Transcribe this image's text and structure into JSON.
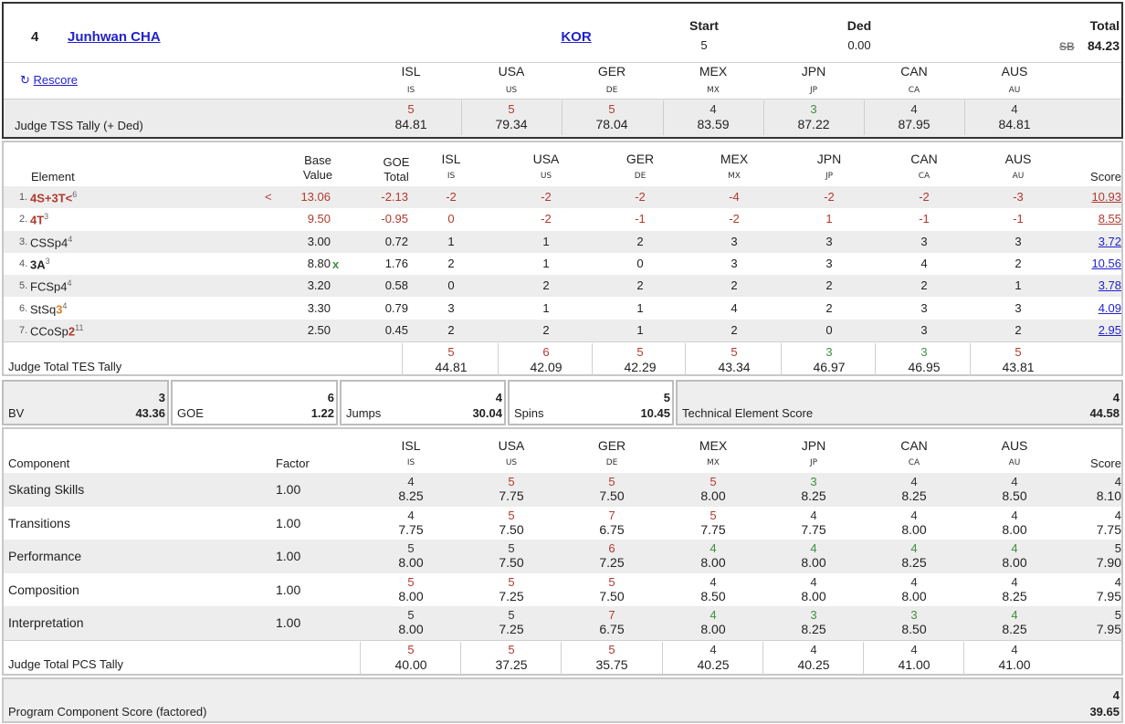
{
  "header": {
    "rank": "4",
    "skater_name": "Junhwan CHA",
    "nation": "KOR",
    "start_label": "Start",
    "start_value": "5",
    "ded_label": "Ded",
    "ded_value": "0.00",
    "total_label": "Total",
    "badge": "SB",
    "total_value": "84.23",
    "rescore_label": "Rescore",
    "tss_label": "Judge TSS Tally (+ Ded)"
  },
  "judges": [
    {
      "name": "ISL",
      "code": "IS"
    },
    {
      "name": "USA",
      "code": "US"
    },
    {
      "name": "GER",
      "code": "DE"
    },
    {
      "name": "MEX",
      "code": "MX"
    },
    {
      "name": "JPN",
      "code": "JP"
    },
    {
      "name": "CAN",
      "code": "CA"
    },
    {
      "name": "AUS",
      "code": "AU"
    }
  ],
  "tss_tally": [
    {
      "rank": "5",
      "value": "84.81",
      "color": "red"
    },
    {
      "rank": "5",
      "value": "79.34",
      "color": "red"
    },
    {
      "rank": "5",
      "value": "78.04",
      "color": "red"
    },
    {
      "rank": "4",
      "value": "83.59",
      "color": "dark"
    },
    {
      "rank": "3",
      "value": "87.22",
      "color": "green"
    },
    {
      "rank": "4",
      "value": "87.95",
      "color": "dark"
    },
    {
      "rank": "4",
      "value": "84.81",
      "color": "dark"
    }
  ],
  "elements_table": {
    "col_element": "Element",
    "col_base_line1": "Base",
    "col_base_line2": "Value",
    "col_goe_line1": "GOE",
    "col_goe_line2": "Total",
    "col_score": "Score",
    "rows": [
      {
        "num": "1.",
        "name": "4S+3T<",
        "name_sup": "6",
        "name_color": "red",
        "flag": "<",
        "base": "13.06",
        "base_red": true,
        "bonus": "",
        "goe": "-2.13",
        "goe_red": true,
        "scores": [
          "-2",
          "-2",
          "-2",
          "-4",
          "-2",
          "-2",
          "-3"
        ],
        "scores_red": true,
        "score": "10.93",
        "score_red": true
      },
      {
        "num": "2.",
        "name": "4T",
        "name_sup": "3",
        "name_color": "red",
        "flag": "",
        "base": "9.50",
        "base_red": true,
        "bonus": "",
        "goe": "-0.95",
        "goe_red": true,
        "scores": [
          "0",
          "-2",
          "-1",
          "-2",
          "1",
          "-1",
          "-1"
        ],
        "scores_red": true,
        "score": "8.55",
        "score_red": true
      },
      {
        "num": "3.",
        "name": "CSSp4",
        "name_sup": "4",
        "name_color": "plain",
        "flag": "",
        "base": "3.00",
        "base_red": false,
        "bonus": "",
        "goe": "0.72",
        "goe_red": false,
        "scores": [
          "1",
          "1",
          "2",
          "3",
          "3",
          "3",
          "3"
        ],
        "scores_red": false,
        "score": "3.72",
        "score_red": false
      },
      {
        "num": "4.",
        "name": "3A",
        "name_sup": "3",
        "name_color": "bold",
        "flag": "",
        "base": "8.80",
        "base_red": false,
        "bonus": "x",
        "goe": "1.76",
        "goe_red": false,
        "scores": [
          "2",
          "1",
          "0",
          "3",
          "3",
          "4",
          "2"
        ],
        "scores_red": false,
        "score": "10.56",
        "score_red": false
      },
      {
        "num": "5.",
        "name": "FCSp4",
        "name_sup": "4",
        "name_color": "plain",
        "flag": "",
        "base": "3.20",
        "base_red": false,
        "bonus": "",
        "goe": "0.58",
        "goe_red": false,
        "scores": [
          "0",
          "2",
          "2",
          "2",
          "2",
          "2",
          "1"
        ],
        "scores_red": false,
        "score": "3.78",
        "score_red": false
      },
      {
        "num": "6.",
        "name": "StSq",
        "name_level": "3",
        "name_sup": "4",
        "name_color": "plain",
        "flag": "",
        "base": "3.30",
        "base_red": false,
        "bonus": "",
        "goe": "0.79",
        "goe_red": false,
        "scores": [
          "3",
          "1",
          "1",
          "4",
          "2",
          "3",
          "3"
        ],
        "scores_red": false,
        "score": "4.09",
        "score_red": false
      },
      {
        "num": "7.",
        "name": "CCoSp",
        "name_level": "2",
        "name_level_red": true,
        "name_sup": "11",
        "name_color": "plain",
        "flag": "",
        "base": "2.50",
        "base_red": false,
        "bonus": "",
        "goe": "0.45",
        "goe_red": false,
        "scores": [
          "2",
          "2",
          "1",
          "2",
          "0",
          "3",
          "2"
        ],
        "scores_red": false,
        "score": "2.95",
        "score_red": false
      }
    ],
    "tes_label": "Judge Total TES Tally",
    "tes_tally": [
      {
        "rank": "5",
        "value": "44.81",
        "color": "red"
      },
      {
        "rank": "6",
        "value": "42.09",
        "color": "red"
      },
      {
        "rank": "5",
        "value": "42.29",
        "color": "red"
      },
      {
        "rank": "5",
        "value": "43.34",
        "color": "red"
      },
      {
        "rank": "3",
        "value": "46.97",
        "color": "green"
      },
      {
        "rank": "3",
        "value": "46.95",
        "color": "green"
      },
      {
        "rank": "5",
        "value": "43.81",
        "color": "red"
      }
    ]
  },
  "summary": {
    "bv": {
      "label": "BV",
      "rank": "3",
      "value": "43.36"
    },
    "goe": {
      "label": "GOE",
      "rank": "6",
      "value": "1.22"
    },
    "jumps": {
      "label": "Jumps",
      "rank": "4",
      "value": "30.04"
    },
    "spins": {
      "label": "Spins",
      "rank": "5",
      "value": "10.45"
    },
    "tes": {
      "label": "Technical Element Score",
      "rank": "4",
      "value": "44.58"
    }
  },
  "components": {
    "col_component": "Component",
    "col_factor": "Factor",
    "col_score": "Score",
    "rows": [
      {
        "name": "Skating Skills",
        "factor": "1.00",
        "ranks": [
          "4",
          "5",
          "5",
          "5",
          "3",
          "4",
          "4"
        ],
        "colors": [
          "dark",
          "red",
          "red",
          "red",
          "green",
          "dark",
          "dark"
        ],
        "values": [
          "8.25",
          "7.75",
          "7.50",
          "8.00",
          "8.25",
          "8.25",
          "8.50"
        ],
        "score_rank": "4",
        "score": "8.10"
      },
      {
        "name": "Transitions",
        "factor": "1.00",
        "ranks": [
          "4",
          "5",
          "7",
          "5",
          "4",
          "4",
          "4"
        ],
        "colors": [
          "dark",
          "red",
          "red",
          "red",
          "dark",
          "dark",
          "dark"
        ],
        "values": [
          "7.75",
          "7.50",
          "6.75",
          "7.75",
          "7.75",
          "8.00",
          "8.00"
        ],
        "score_rank": "4",
        "score": "7.75"
      },
      {
        "name": "Performance",
        "factor": "1.00",
        "ranks": [
          "5",
          "5",
          "6",
          "4",
          "4",
          "4",
          "4"
        ],
        "colors": [
          "dark",
          "dark",
          "red",
          "green",
          "green",
          "green",
          "green"
        ],
        "values": [
          "8.00",
          "7.50",
          "7.25",
          "8.00",
          "8.00",
          "8.25",
          "8.00"
        ],
        "score_rank": "5",
        "score": "7.90"
      },
      {
        "name": "Composition",
        "factor": "1.00",
        "ranks": [
          "5",
          "5",
          "5",
          "4",
          "4",
          "4",
          "4"
        ],
        "colors": [
          "red",
          "red",
          "red",
          "dark",
          "dark",
          "dark",
          "dark"
        ],
        "values": [
          "8.00",
          "7.25",
          "7.50",
          "8.50",
          "8.00",
          "8.00",
          "8.25"
        ],
        "score_rank": "4",
        "score": "7.95"
      },
      {
        "name": "Interpretation",
        "factor": "1.00",
        "ranks": [
          "5",
          "5",
          "7",
          "4",
          "3",
          "3",
          "4"
        ],
        "colors": [
          "dark",
          "dark",
          "red",
          "green",
          "green",
          "green",
          "green"
        ],
        "values": [
          "8.00",
          "7.25",
          "6.75",
          "8.00",
          "8.25",
          "8.50",
          "8.25"
        ],
        "score_rank": "5",
        "score": "7.95"
      }
    ],
    "pcs_label": "Judge Total PCS Tally",
    "pcs_tally": [
      {
        "rank": "5",
        "value": "40.00",
        "color": "red"
      },
      {
        "rank": "5",
        "value": "37.25",
        "color": "red"
      },
      {
        "rank": "5",
        "value": "35.75",
        "color": "red"
      },
      {
        "rank": "4",
        "value": "40.25",
        "color": "dark"
      },
      {
        "rank": "4",
        "value": "40.25",
        "color": "dark"
      },
      {
        "rank": "4",
        "value": "41.00",
        "color": "dark"
      },
      {
        "rank": "4",
        "value": "41.00",
        "color": "dark"
      }
    ]
  },
  "pcs_total": {
    "label": "Program Component Score (factored)",
    "rank": "4",
    "value": "39.65"
  }
}
